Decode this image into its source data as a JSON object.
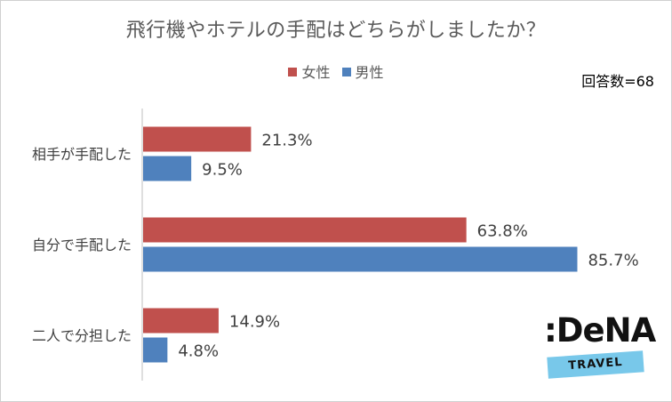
{
  "title": "飛行機やホテルの手配はどちらがしましたか？",
  "respondents": "回答数=68",
  "logo": {
    "wordmark": ":DeNA",
    "tagline": "TRAVEL"
  },
  "colors": {
    "female": "#c0504d",
    "male": "#4f81bd"
  },
  "chart_data": {
    "type": "bar",
    "orientation": "horizontal",
    "title": "飛行機やホテルの手配はどちらがしましたか？",
    "categories": [
      "相手が手配した",
      "自分で手配した",
      "二人で分担した"
    ],
    "series": [
      {
        "name": "女性",
        "values": [
          21.3,
          63.8,
          14.9
        ],
        "labels": [
          "21.3%",
          "63.8%",
          "14.9%"
        ]
      },
      {
        "name": "男性",
        "values": [
          9.5,
          85.7,
          4.8
        ],
        "labels": [
          "9.5%",
          "85.7%",
          "4.8%"
        ]
      }
    ],
    "xlim": [
      0,
      100
    ],
    "grid": false,
    "legend": "top"
  }
}
